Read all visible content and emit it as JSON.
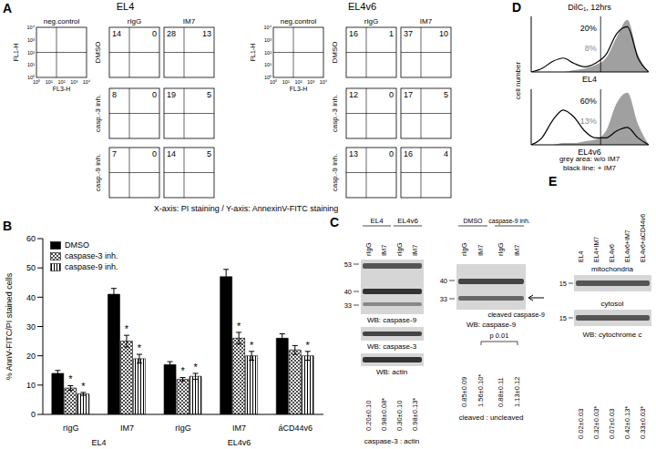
{
  "panel_A": {
    "label": "A",
    "column_titles": [
      "neg.control",
      "rIgG",
      "IM7"
    ],
    "row_labels": [
      "DMSO",
      "casp.-3 inh.",
      "casp.-9 inh."
    ],
    "neg_control": {
      "y_label": "FL1-H",
      "x_label": "FL3-H",
      "ticks": [
        "10⁰",
        "10¹",
        "10²",
        "10³",
        "10⁴"
      ]
    },
    "groups": [
      {
        "title": "EL4",
        "quadrants": [
          [
            [
              14,
              0
            ],
            [
              28,
              13
            ]
          ],
          [
            [
              8,
              0
            ],
            [
              19,
              5
            ]
          ],
          [
            [
              7,
              0
            ],
            [
              14,
              5
            ]
          ]
        ]
      },
      {
        "title": "EL4v6",
        "quadrants": [
          [
            [
              16,
              1
            ],
            [
              37,
              10
            ]
          ],
          [
            [
              12,
              0
            ],
            [
              17,
              5
            ]
          ],
          [
            [
              13,
              0
            ],
            [
              16,
              4
            ]
          ]
        ]
      }
    ],
    "caption": "X-axis: PI staining / Y-axis: AnnexinV-FITC staining"
  },
  "chart_data": [
    {
      "panel": "B",
      "type": "bar",
      "y_label": "% AnnV-FITC/PI stained cells",
      "categories": [
        "rIgG",
        "IM7",
        "rIgG",
        "IM7",
        "áCD44v6"
      ],
      "category_groups": [
        "EL4",
        "EL4",
        "EL4v6",
        "EL4v6",
        "EL4v6"
      ],
      "series": [
        {
          "name": "DMSO",
          "color": "#000000",
          "values": [
            14,
            41,
            17,
            47,
            26
          ],
          "errors": [
            1,
            2,
            1,
            2.5,
            1.5
          ],
          "significance": [
            null,
            null,
            null,
            null,
            null
          ]
        },
        {
          "name": "caspase-3 inh.",
          "color": "#000000",
          "values": [
            9,
            25,
            12,
            26,
            22
          ],
          "errors": [
            0.8,
            2,
            0.6,
            2,
            1.5
          ],
          "significance": [
            "*",
            "*",
            "*",
            "*",
            null
          ]
        },
        {
          "name": "caspase-9 inh.",
          "color": "#000000",
          "values": [
            7,
            19,
            13,
            20,
            20
          ],
          "errors": [
            0.5,
            1.5,
            1,
            1.5,
            1.5
          ],
          "significance": [
            "*",
            "*",
            "*",
            "*",
            "*"
          ]
        }
      ],
      "ylim": [
        0,
        60
      ],
      "yticks": [
        0,
        10,
        20,
        30,
        40,
        50,
        60
      ],
      "legend": "upper left",
      "grid": false
    },
    {
      "panel": "D",
      "type": "area",
      "title": "DilC₁, 12hrs",
      "y_label": "cell number",
      "tick_labels": false,
      "xlim": [
        0,
        11
      ],
      "ylim": [
        0,
        32
      ],
      "x": [
        0,
        1,
        2,
        3,
        4,
        5,
        6,
        7,
        8,
        9,
        10,
        11
      ],
      "gate": 6.5,
      "plots": [
        {
          "name": "EL4",
          "series": [
            {
              "name": "grey area: w/o IM7",
              "type": "area",
              "color": "#a0a0a0",
              "values": [
                0,
                0,
                0,
                0,
                1,
                2,
                4,
                8,
                20,
                30,
                10,
                0
              ]
            },
            {
              "name": "black line: + IM7",
              "type": "line",
              "color": "#000000",
              "values": [
                0,
                2,
                6,
                8,
                5,
                3,
                5,
                10,
                22,
                26,
                8,
                0
              ]
            }
          ],
          "annotations": [
            {
              "text": "20%",
              "color": "#000000"
            },
            {
              "text": "8%",
              "color": "#888888"
            }
          ]
        },
        {
          "name": "EL4v6",
          "series": [
            {
              "name": "grey area: w/o IM7",
              "type": "area",
              "color": "#a0a0a0",
              "values": [
                0,
                0,
                0,
                1,
                1,
                2,
                3,
                8,
                24,
                30,
                12,
                0
              ]
            },
            {
              "name": "black line: + IM7",
              "type": "line",
              "color": "#000000",
              "values": [
                0,
                4,
                14,
                20,
                16,
                8,
                4,
                4,
                8,
                10,
                4,
                0
              ]
            }
          ],
          "annotations": [
            {
              "text": "60%",
              "color": "#000000"
            },
            {
              "text": "13%",
              "color": "#888888"
            }
          ]
        }
      ]
    }
  ],
  "panel_C": {
    "label": "C",
    "left": {
      "groups": [
        "EL4",
        "EL4v6"
      ],
      "lanes": [
        "rIgG",
        "IM7",
        "rIgG",
        "IM7"
      ],
      "blots": [
        {
          "label": "WB: caspase-9",
          "markers": [
            53,
            40,
            33
          ]
        },
        {
          "label": "WB: caspase-3"
        },
        {
          "label": "WB: actin"
        }
      ],
      "values": [
        "0.20±0.10",
        "0.98±0.08*",
        "0.30±0.10",
        "0.98±0.13*"
      ],
      "value_caption": "caspase-3 : actin"
    },
    "right": {
      "groups": [
        "DMSO",
        "caspase-9 inh."
      ],
      "lanes": [
        "rIgG",
        "IM7",
        "rIgG",
        "IM7"
      ],
      "blots": [
        {
          "label": "WB: caspase-9",
          "markers": [
            40,
            33
          ]
        }
      ],
      "arrow_label": "cleaved caspase-9",
      "p_value": "p 0.01",
      "values": [
        "0.85±0.09",
        "1.56±0.10*",
        "0.88±0.11",
        "1.13±0.12"
      ],
      "value_caption": "cleaved : uncleaved"
    }
  },
  "panel_E": {
    "label": "E",
    "lanes": [
      "EL4",
      "EL4+IM7",
      "EL4v6",
      "EL4v6+IM7",
      "EL4v6+áCD44v6"
    ],
    "blots": [
      {
        "label": "mitochondria",
        "marker": 15
      },
      {
        "label": "cytosol",
        "marker": 15
      }
    ],
    "blot_caption": "WB: cytochrome c",
    "values": [
      "0.02±0.03",
      "0.32±0.03*",
      "0.07±0.03",
      "0.42±0.13*",
      "0.33±0.03*"
    ]
  }
}
